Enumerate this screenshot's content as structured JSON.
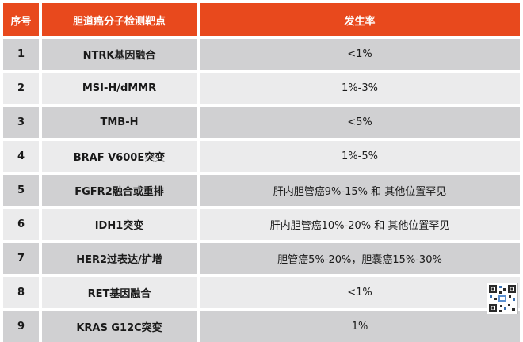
{
  "table": {
    "headers": [
      "序号",
      "胆道癌分子检测靶点",
      "发生率"
    ],
    "rows": [
      {
        "no": "1",
        "target": "NTRK基因融合",
        "rate": "<1%"
      },
      {
        "no": "2",
        "target": "MSI-H/dMMR",
        "rate": "1%-3%"
      },
      {
        "no": "3",
        "target": "TMB-H",
        "rate": "<5%"
      },
      {
        "no": "4",
        "target": "BRAF V600E突变",
        "rate": "1%-5%"
      },
      {
        "no": "5",
        "target": "FGFR2融合或重排",
        "rate": "肝内胆管癌9%-15% 和 其他位置罕见"
      },
      {
        "no": "6",
        "target": "IDH1突变",
        "rate": "肝内胆管癌10%-20% 和 其他位置罕见"
      },
      {
        "no": "7",
        "target": "HER2过表达/扩增",
        "rate": "胆管癌5%-20%，胆囊癌15%-30%"
      },
      {
        "no": "8",
        "target": "RET基因融合",
        "rate": "<1%"
      },
      {
        "no": "9",
        "target": "KRAS G12C突变",
        "rate": "1%"
      }
    ]
  },
  "colors": {
    "header_bg": "#e8491d",
    "row_dark": "#d0d0d2",
    "row_light": "#ebebec"
  },
  "icons": {
    "corner_badge": "qr-code-icon"
  }
}
